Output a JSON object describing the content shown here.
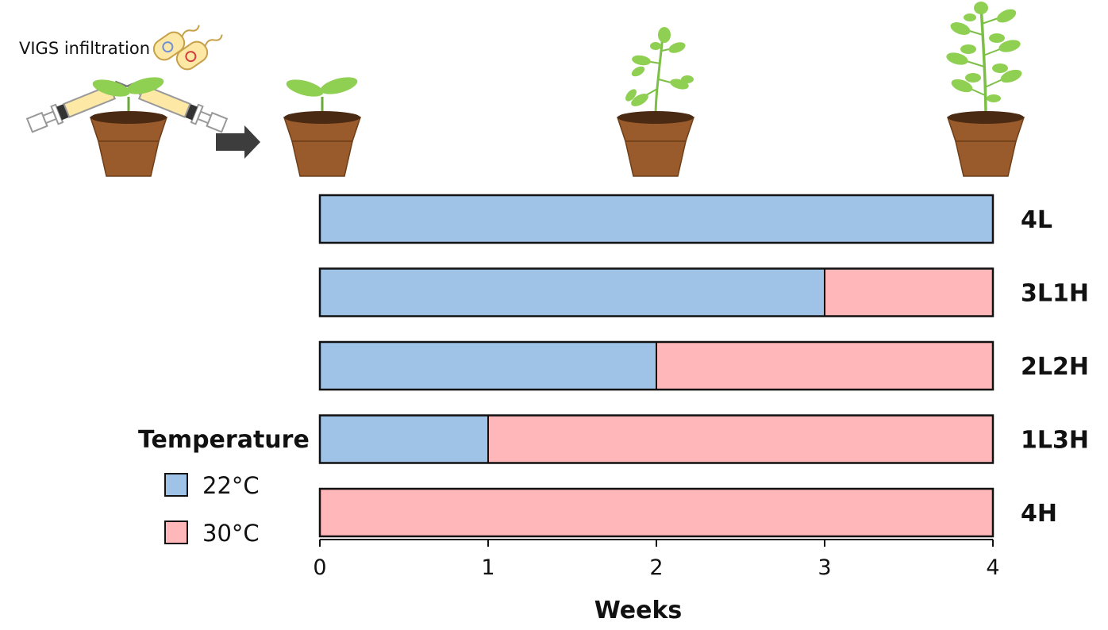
{
  "illustration": {
    "vigs_label": "VIGS infiltration"
  },
  "colors": {
    "low_temp": "#9fc3e7",
    "high_temp": "#ffb7b9",
    "outline": "#111111",
    "pot": "#9a5b2c",
    "soil": "#4a2a12",
    "leaf": "#8fcf52",
    "arrow": "#3d3d3d"
  },
  "legend": {
    "title": "Temperature",
    "items": [
      {
        "label": "22°C",
        "color_key": "low_temp"
      },
      {
        "label": "30°C",
        "color_key": "high_temp"
      }
    ]
  },
  "chart_data": {
    "type": "bar",
    "orientation": "horizontal",
    "xlabel": "Weeks",
    "xlim": [
      0,
      4
    ],
    "xticks": [
      "0",
      "1",
      "2",
      "3",
      "4"
    ],
    "conditions": [
      {
        "label": "4L",
        "low_weeks": 4,
        "high_weeks": 0
      },
      {
        "label": "3L1H",
        "low_weeks": 3,
        "high_weeks": 1
      },
      {
        "label": "2L2H",
        "low_weeks": 2,
        "high_weeks": 2
      },
      {
        "label": "1L3H",
        "low_weeks": 1,
        "high_weeks": 3
      },
      {
        "label": "4H",
        "low_weeks": 0,
        "high_weeks": 4
      }
    ]
  }
}
